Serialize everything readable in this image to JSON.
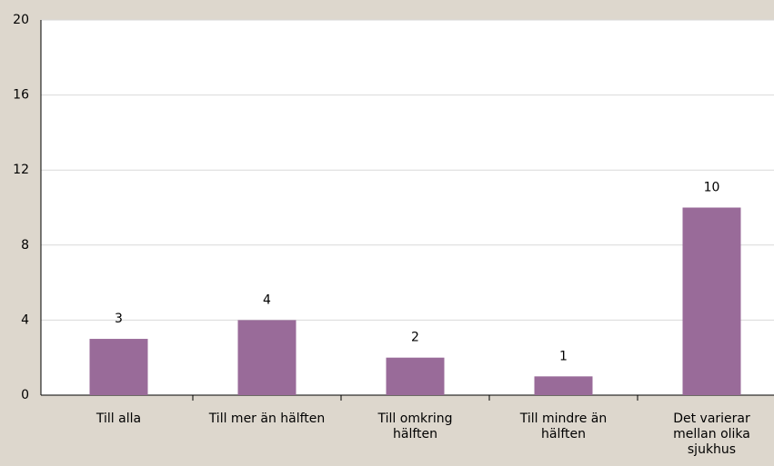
{
  "chart_data": {
    "type": "bar",
    "categories": [
      "Till alla",
      "Till mer än hälften",
      "Till omkring\nhälften",
      "Till mindre än\nhälften",
      "Det varierar\nmellan olika\nsjukhus"
    ],
    "values": [
      3,
      4,
      2,
      1,
      10
    ],
    "color": "#996b99",
    "ylim": [
      0,
      20
    ],
    "yticks": [
      0,
      4,
      8,
      12,
      16,
      20
    ],
    "grid": true
  }
}
